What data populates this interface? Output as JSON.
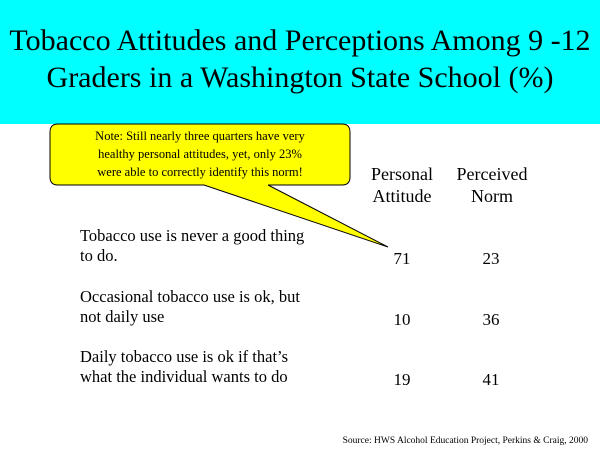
{
  "title": {
    "line1": "Tobacco Attitudes and Perceptions Among 9 -12",
    "line2": "Graders in a Washington State School (%)"
  },
  "callout": {
    "line1": "Note:  Still nearly three quarters have very",
    "line2": "healthy personal attitudes, yet, only 23%",
    "line3": "were able to correctly identify this norm!"
  },
  "columns": {
    "personal": {
      "line1": "Personal",
      "line2": "Attitude"
    },
    "perceived": {
      "line1": "Perceived",
      "line2": "Norm"
    }
  },
  "rows": [
    {
      "label1": "Tobacco use is never a good thing",
      "label2": "to do.",
      "personal": "71",
      "perceived": "23"
    },
    {
      "label1": "Occasional tobacco use is ok, but",
      "label2": "not daily use",
      "personal": "10",
      "perceived": "36"
    },
    {
      "label1": "Daily tobacco use is ok if that’s",
      "label2": "what the individual wants to do",
      "personal": "19",
      "perceived": "41"
    }
  ],
  "source": "Source:  HWS Alcohol Education Project, Perkins & Craig, 2000",
  "colors": {
    "title_band": "#00ffff",
    "callout_fill": "#ffff00"
  }
}
